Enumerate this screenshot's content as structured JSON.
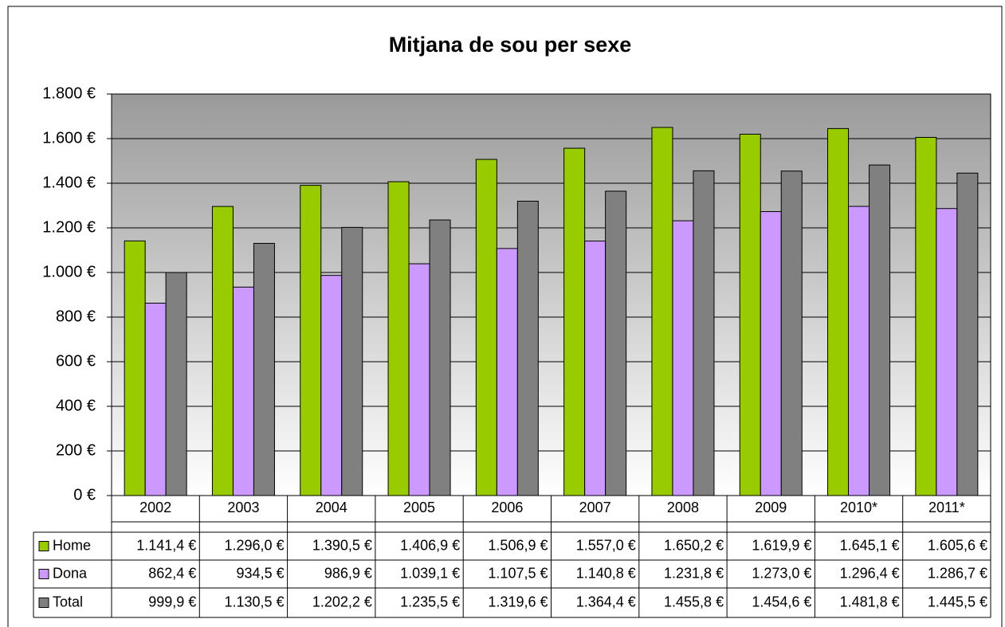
{
  "chart_data": {
    "type": "bar",
    "title": "Mitjana de sou per sexe",
    "categories": [
      "2002",
      "2003",
      "2004",
      "2005",
      "2006",
      "2007",
      "2008",
      "2009",
      "2010*",
      "2011*"
    ],
    "series": [
      {
        "name": "Home",
        "color": "#99cc00",
        "values": [
          1141.4,
          1296.0,
          1390.5,
          1406.9,
          1506.9,
          1557.0,
          1650.2,
          1619.9,
          1645.1,
          1605.6
        ],
        "value_labels": [
          "1.141,4 €",
          "1.296,0 €",
          "1.390,5 €",
          "1.406,9 €",
          "1.506,9 €",
          "1.557,0 €",
          "1.650,2 €",
          "1.619,9 €",
          "1.645,1 €",
          "1.605,6 €"
        ]
      },
      {
        "name": "Dona",
        "color": "#cc99ff",
        "values": [
          862.4,
          934.5,
          986.9,
          1039.1,
          1107.5,
          1140.8,
          1231.8,
          1273.0,
          1296.4,
          1286.7
        ],
        "value_labels": [
          "862,4 €",
          "934,5 €",
          "986,9 €",
          "1.039,1 €",
          "1.107,5 €",
          "1.140,8 €",
          "1.231,8 €",
          "1.273,0 €",
          "1.296,4 €",
          "1.286,7 €"
        ]
      },
      {
        "name": "Total",
        "color": "#808080",
        "values": [
          999.9,
          1130.5,
          1202.2,
          1235.5,
          1319.6,
          1364.4,
          1455.8,
          1454.6,
          1481.8,
          1445.5
        ],
        "value_labels": [
          "999,9 €",
          "1.130,5 €",
          "1.202,2 €",
          "1.235,5 €",
          "1.319,6 €",
          "1.364,4 €",
          "1.455,8 €",
          "1.454,6 €",
          "1.481,8 €",
          "1.445,5 €"
        ]
      }
    ],
    "ylim": [
      0,
      1800
    ],
    "yticks": [
      {
        "value": 0,
        "label": "0 €"
      },
      {
        "value": 200,
        "label": "200 €"
      },
      {
        "value": 400,
        "label": "400 €"
      },
      {
        "value": 600,
        "label": "600 €"
      },
      {
        "value": 800,
        "label": "800 €"
      },
      {
        "value": 1000,
        "label": "1.000 €"
      },
      {
        "value": 1200,
        "label": "1.200 €"
      },
      {
        "value": 1400,
        "label": "1.400 €"
      },
      {
        "value": 1600,
        "label": "1.600 €"
      },
      {
        "value": 1800,
        "label": "1.800 €"
      }
    ],
    "grid": true
  }
}
